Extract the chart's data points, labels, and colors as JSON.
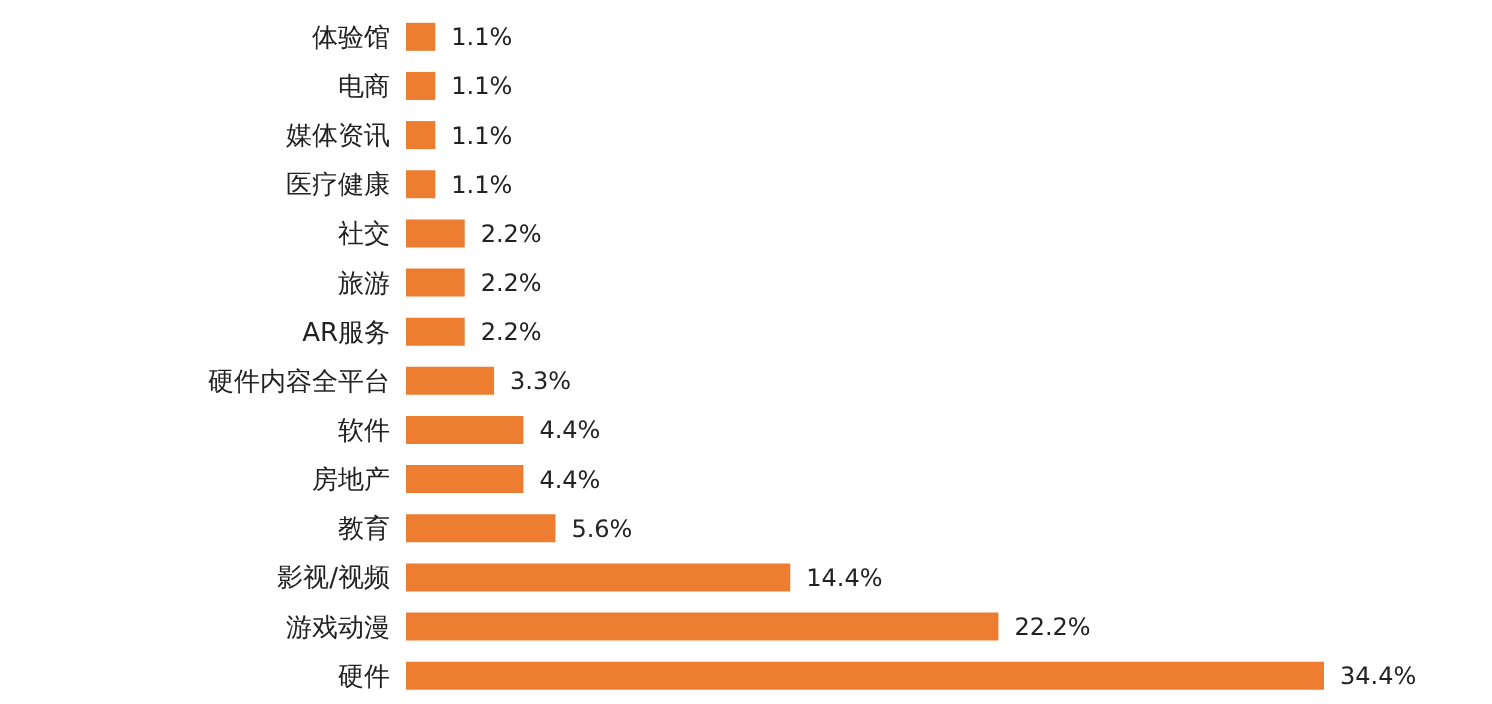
{
  "chart_data": {
    "type": "bar",
    "orientation": "horizontal",
    "categories": [
      "体验馆",
      "电商",
      "媒体资讯",
      "医疗健康",
      "社交",
      "旅游",
      "AR服务",
      "硬件内容全平台",
      "软件",
      "房地产",
      "教育",
      "影视/视频",
      "游戏动漫",
      "硬件"
    ],
    "values": [
      1.1,
      1.1,
      1.1,
      1.1,
      2.2,
      2.2,
      2.2,
      3.3,
      4.4,
      4.4,
      5.6,
      14.4,
      22.2,
      34.4
    ],
    "value_labels": [
      "1.1%",
      "1.1%",
      "1.1%",
      "1.1%",
      "2.2%",
      "2.2%",
      "2.2%",
      "3.3%",
      "4.4%",
      "4.4%",
      "5.6%",
      "14.4%",
      "22.2%",
      "34.4%"
    ],
    "color": "#ed7d31",
    "grid": false,
    "legend": false
  }
}
